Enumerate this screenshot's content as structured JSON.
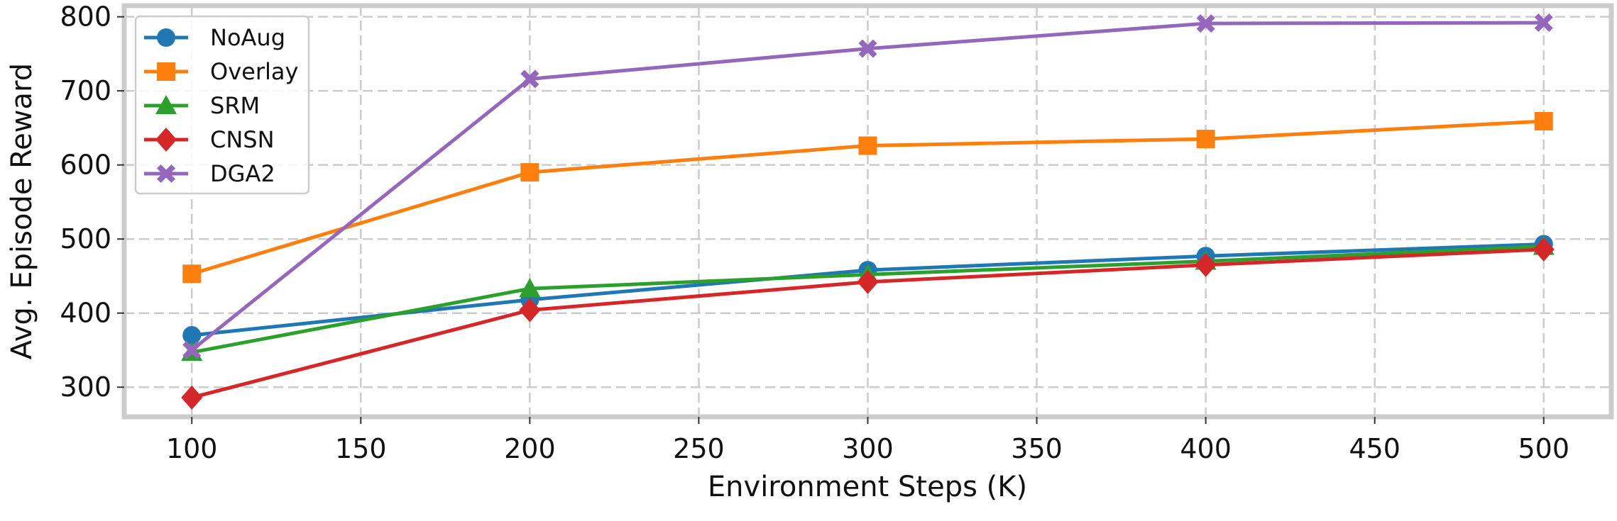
{
  "chart_data": {
    "type": "line",
    "xlabel": "Environment Steps (K)",
    "ylabel": "Avg. Episode Reward",
    "x": [
      100,
      200,
      300,
      400,
      500
    ],
    "xlim": [
      80,
      520
    ],
    "ylim": [
      260,
      815
    ],
    "xticks": [
      100,
      150,
      200,
      250,
      300,
      350,
      400,
      450,
      500
    ],
    "yticks": [
      300,
      400,
      500,
      600,
      700,
      800
    ],
    "grid": true,
    "legend_position": "upper-left",
    "series": [
      {
        "name": "NoAug",
        "color": "#1f77b4",
        "marker": "circle",
        "values": [
          370,
          418,
          458,
          477,
          493
        ]
      },
      {
        "name": "Overlay",
        "color": "#ff7f0e",
        "marker": "square",
        "values": [
          453,
          590,
          626,
          635,
          659
        ]
      },
      {
        "name": "SRM",
        "color": "#2ca02c",
        "marker": "triangle",
        "values": [
          347,
          433,
          452,
          470,
          490
        ]
      },
      {
        "name": "CNSN",
        "color": "#d62728",
        "marker": "diamond",
        "values": [
          286,
          404,
          442,
          465,
          486
        ]
      },
      {
        "name": "DGA2",
        "color": "#9467bd",
        "marker": "x",
        "values": [
          350,
          716,
          757,
          791,
          792
        ]
      }
    ]
  }
}
